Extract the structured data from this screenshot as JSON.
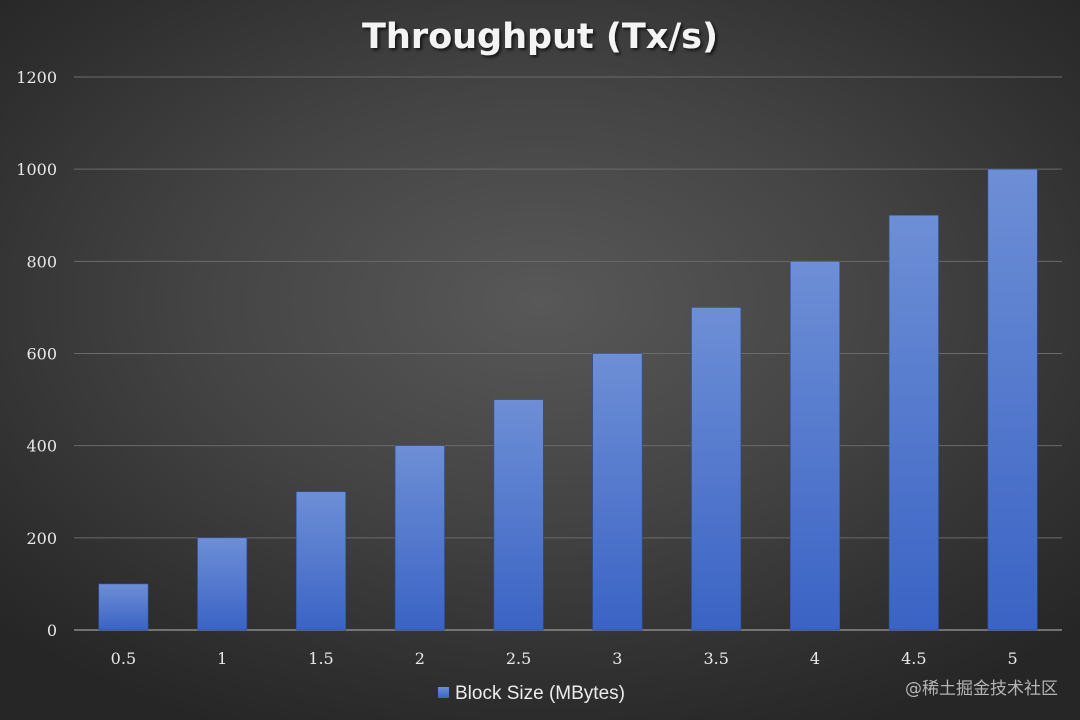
{
  "chart_data": {
    "type": "bar",
    "title": "Throughput (Tx/s)",
    "xlabel": "",
    "ylabel": "",
    "categories": [
      "0.5",
      "1",
      "1.5",
      "2",
      "2.5",
      "3",
      "3.5",
      "4",
      "4.5",
      "5"
    ],
    "series": [
      {
        "name": "Block Size (MBytes)",
        "values": [
          100,
          200,
          300,
          400,
          500,
          600,
          700,
          800,
          900,
          1000
        ]
      }
    ],
    "ylim": [
      0,
      1200
    ],
    "yticks": [
      0,
      200,
      400,
      600,
      800,
      1000,
      1200
    ],
    "grid": true,
    "legend_position": "bottom",
    "colors": {
      "bar_top": "#6e8fd6",
      "bar_bottom": "#3a63c4",
      "gridline": "#6a6a6a",
      "text": "#e8e8e8"
    }
  },
  "watermark": "@稀土掘金技术社区"
}
